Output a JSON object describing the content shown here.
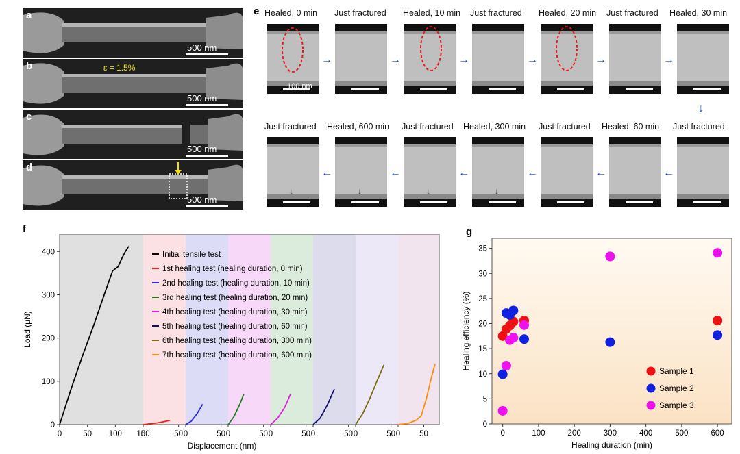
{
  "panels": {
    "a": "a",
    "b": "b",
    "c": "c",
    "d": "d",
    "e": "e",
    "f": "f",
    "g": "g"
  },
  "sem": {
    "scale_label": "500 nm",
    "strain_label": "ε = 1.5%"
  },
  "tem": {
    "scale_label": "100 nm",
    "row1": [
      "Healed, 0 min",
      "Just fractured",
      "Healed, 10 min",
      "Just fractured",
      "Healed, 20 min",
      "Just fractured",
      "Healed, 30 min"
    ],
    "row2": [
      "Just fractured",
      "Healed, 600 min",
      "Just fractured",
      "Healed, 300 min",
      "Just fractured",
      "Healed, 60 min",
      "Just fractured"
    ]
  },
  "chart_data": [
    {
      "type": "line",
      "panel": "f",
      "xlabel": "Displacement (nm)",
      "ylabel": "Load (μN)",
      "ylim": [
        0,
        440
      ],
      "yticks": [
        0,
        100,
        200,
        300,
        400
      ],
      "segment_ticks": [
        [
          "0",
          "50",
          "100",
          "150"
        ],
        [
          "0",
          "50"
        ],
        [
          "0",
          "50"
        ],
        [
          "0",
          "50"
        ],
        [
          "0",
          "50"
        ],
        [
          "0",
          "50"
        ],
        [
          "0",
          "50"
        ],
        [
          "0",
          "50"
        ]
      ],
      "series": [
        {
          "name": "Initial tensile test",
          "color": "#000000",
          "x": [
            0,
            10,
            20,
            40,
            60,
            80,
            95,
            105,
            112,
            118,
            124
          ],
          "y": [
            0,
            40,
            80,
            155,
            225,
            300,
            355,
            365,
            385,
            400,
            412
          ]
        },
        {
          "name": "1st healing test (healing duration, 0 min)",
          "color": "#e8231e",
          "x": [
            0,
            10,
            20,
            30,
            38
          ],
          "y": [
            0,
            2,
            4,
            7,
            10
          ]
        },
        {
          "name": "2nd healing test (healing duration, 10 min)",
          "color": "#2a2ae0",
          "x": [
            0,
            8,
            16,
            24
          ],
          "y": [
            0,
            8,
            25,
            47
          ]
        },
        {
          "name": "3rd healing test (healing duration, 20 min)",
          "color": "#1e7a1e",
          "x": [
            0,
            8,
            16,
            22
          ],
          "y": [
            0,
            18,
            45,
            70
          ]
        },
        {
          "name": "4th healing test (healing duration, 30 min)",
          "color": "#e020e0",
          "x": [
            0,
            10,
            20,
            28
          ],
          "y": [
            0,
            15,
            40,
            70
          ]
        },
        {
          "name": "5th healing test (healing duration, 60 min)",
          "color": "#10106e",
          "x": [
            0,
            10,
            20,
            30
          ],
          "y": [
            0,
            15,
            45,
            82
          ]
        },
        {
          "name": "6th healing test (healing duration, 300 min)",
          "color": "#7a6a10",
          "x": [
            0,
            10,
            20,
            30,
            40
          ],
          "y": [
            0,
            25,
            60,
            100,
            138
          ]
        },
        {
          "name": "7th healing test (healing duration, 600 min)",
          "color": "#ff8c10",
          "x": [
            0,
            20,
            35,
            45,
            55,
            65,
            72
          ],
          "y": [
            0,
            3,
            10,
            20,
            60,
            110,
            140
          ]
        }
      ]
    },
    {
      "type": "scatter",
      "panel": "g",
      "xlabel": "Healing duration (min)",
      "ylabel": "Healing efficiency (%)",
      "xlim": [
        -30,
        640
      ],
      "ylim": [
        0,
        37
      ],
      "xticks": [
        0,
        100,
        200,
        300,
        400,
        500,
        600
      ],
      "yticks": [
        0,
        5,
        10,
        15,
        20,
        25,
        30,
        35
      ],
      "series": [
        {
          "name": "Sample 1",
          "color": "#ee1111",
          "x": [
            0,
            10,
            20,
            30,
            60,
            600
          ],
          "y": [
            17.5,
            18.9,
            19.6,
            20.4,
            20.6,
            20.6
          ]
        },
        {
          "name": "Sample 2",
          "color": "#1020e0",
          "x": [
            0,
            10,
            20,
            30,
            60,
            300,
            600
          ],
          "y": [
            9.9,
            22.1,
            21.7,
            22.6,
            16.9,
            16.3,
            17.7
          ]
        },
        {
          "name": "Sample 3",
          "color": "#ee11ee",
          "x": [
            0,
            10,
            20,
            30,
            60,
            300,
            600
          ],
          "y": [
            2.6,
            11.6,
            16.7,
            17.2,
            19.7,
            33.4,
            34.1
          ]
        }
      ]
    }
  ]
}
